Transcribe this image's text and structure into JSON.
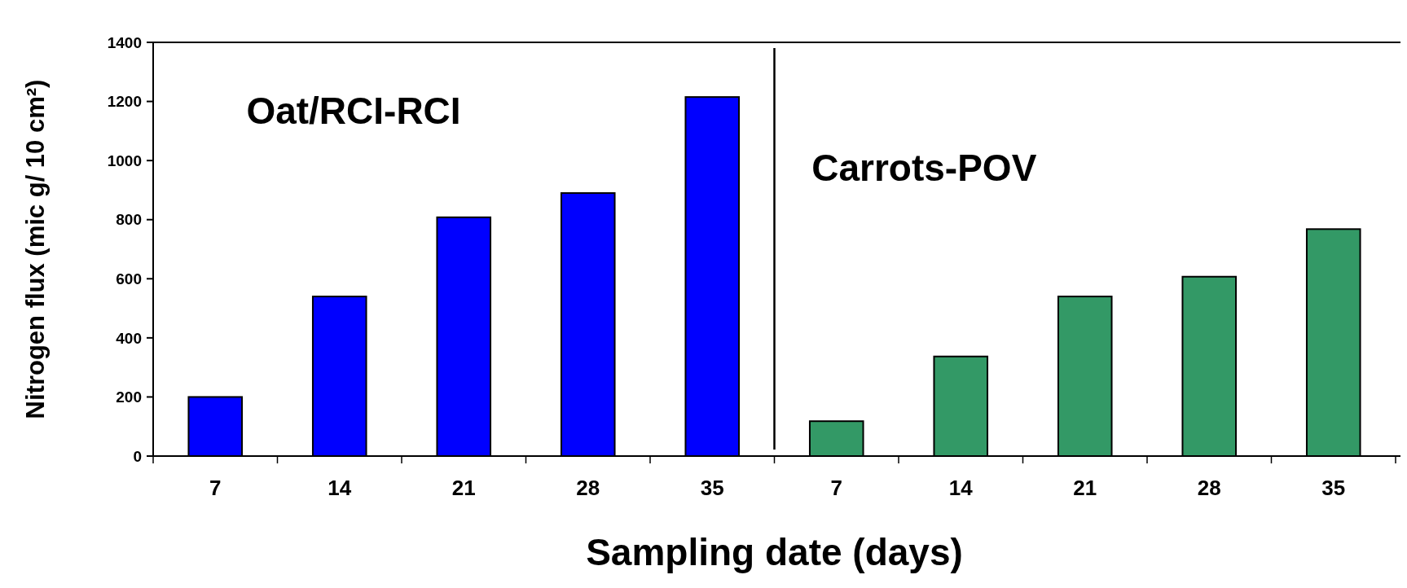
{
  "chart_data": {
    "type": "bar",
    "xlabel": "Sampling date (days)",
    "ylabel": "Nitrogen flux (mic g/ 10 cm²)",
    "categories": [
      "7",
      "14",
      "21",
      "28",
      "35",
      "7",
      "14",
      "21",
      "28",
      "35"
    ],
    "values": [
      200,
      540,
      808,
      890,
      1215,
      118,
      337,
      540,
      607,
      768
    ],
    "colors": [
      "#0000ff",
      "#0000ff",
      "#0000ff",
      "#0000ff",
      "#0000ff",
      "#339966",
      "#339966",
      "#339966",
      "#339966",
      "#339966"
    ],
    "annotations": [
      "Oat/RCI-RCI",
      "Carrots-POV"
    ],
    "ylim": [
      0,
      1400
    ],
    "yticks": [
      0,
      200,
      400,
      600,
      800,
      1000,
      1200,
      1400
    ],
    "grid": false
  }
}
